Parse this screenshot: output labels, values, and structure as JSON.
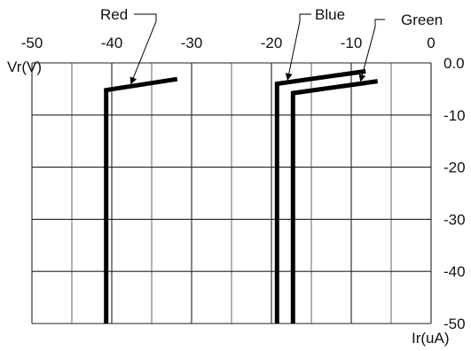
{
  "chart_data": {
    "type": "line",
    "ylabel": "Vr(V)",
    "xlabel": "Ir(uA)",
    "xlim": [
      -50,
      0
    ],
    "ylim": [
      -50,
      0
    ],
    "x_ticks": [
      -50,
      -40,
      -30,
      -20,
      -10,
      0
    ],
    "x_tick_labels": [
      "-50",
      "-40",
      "-30",
      "-20",
      "-10",
      "0"
    ],
    "y_ticks": [
      0,
      -10,
      -20,
      -30,
      -40,
      -50
    ],
    "y_tick_labels": [
      "0.0",
      "-10",
      "-20",
      "-30",
      "-40",
      "-50"
    ],
    "grid": true,
    "legend": "callouts above plot",
    "series": [
      {
        "name": "Red",
        "points": [
          [
            -40.7,
            -50
          ],
          [
            -40.7,
            -5.2
          ],
          [
            -31.8,
            -3.1
          ]
        ]
      },
      {
        "name": "Blue",
        "points": [
          [
            -19.3,
            -50
          ],
          [
            -19.3,
            -4.0
          ],
          [
            -8.2,
            -1.6
          ]
        ]
      },
      {
        "name": "Green",
        "points": [
          [
            -17.3,
            -50
          ],
          [
            -17.3,
            -5.8
          ],
          [
            -6.7,
            -3.5
          ]
        ]
      }
    ]
  }
}
